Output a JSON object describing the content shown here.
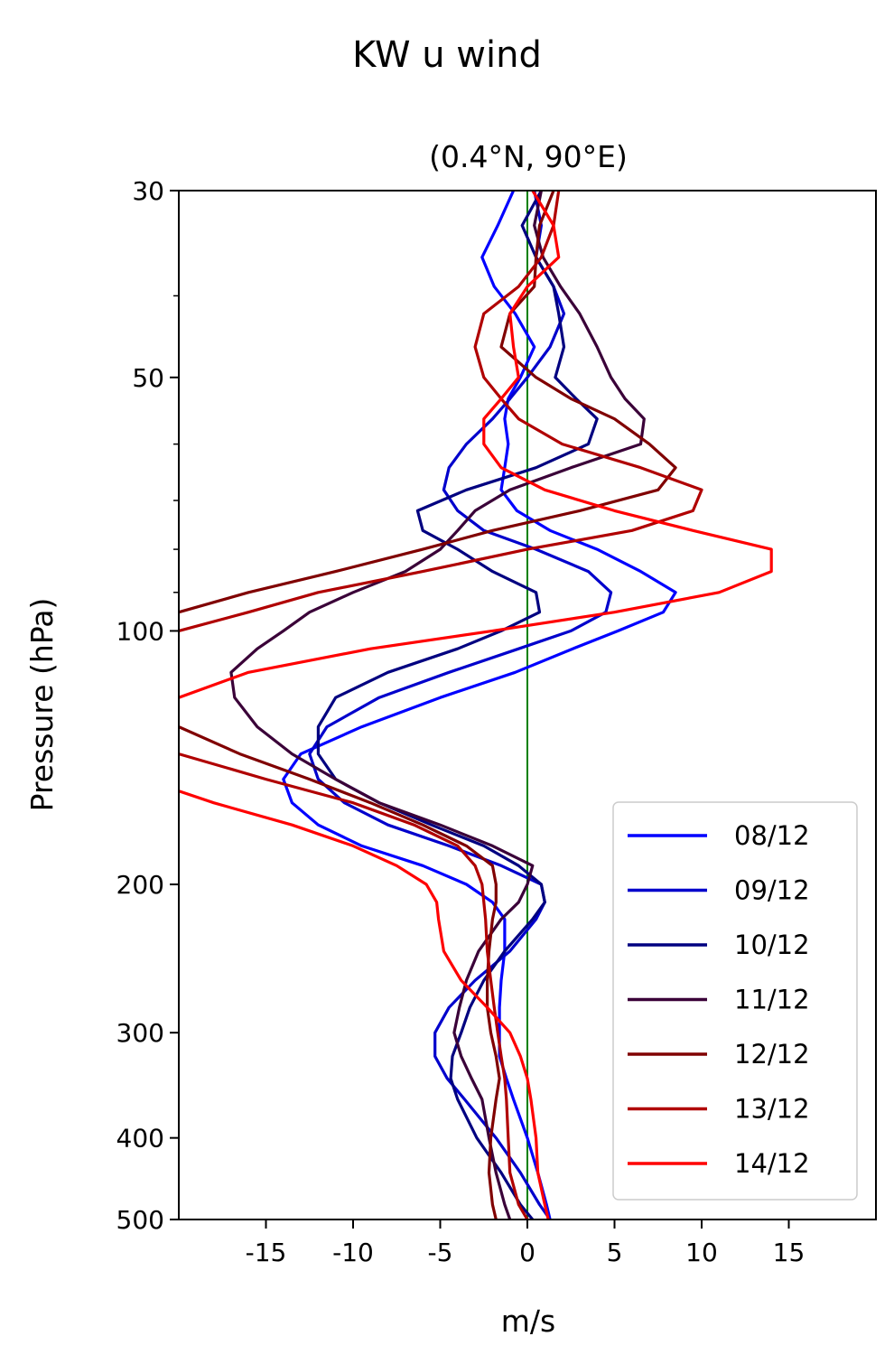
{
  "chart_data": {
    "type": "line",
    "suptitle": "KW u wind",
    "title": "(0.4°N, 90°E)",
    "xlabel": "m/s",
    "ylabel": "Pressure (hPa)",
    "xlim": [
      -20,
      20
    ],
    "ylim": [
      500,
      30
    ],
    "yscale": "log",
    "xticks": [
      -15,
      -10,
      -5,
      0,
      5,
      10,
      15
    ],
    "xtick_labels": [
      "-15",
      "-10",
      "-5",
      "0",
      "5",
      "10",
      "15"
    ],
    "yticks": [
      30,
      50,
      100,
      200,
      300,
      400,
      500
    ],
    "ytick_labels": [
      "30",
      "50",
      "100",
      "200",
      "300",
      "400",
      "500"
    ],
    "y_minor_ticks": [
      40,
      60,
      70,
      80,
      90
    ],
    "grid": false,
    "legend_position": "lower-right",
    "reference_line": {
      "x": 0,
      "color": "#008000"
    },
    "series": [
      {
        "name": "08/12",
        "color": "#0000ff",
        "p": [
          30,
          33,
          36,
          39,
          42,
          46,
          50,
          53,
          56,
          60,
          64,
          68,
          72,
          76,
          80,
          85,
          90,
          95,
          100,
          105,
          112,
          120,
          130,
          140,
          150,
          160,
          170,
          180,
          190,
          200,
          210,
          220,
          240,
          260,
          280,
          300,
          320,
          340,
          360,
          400,
          440,
          480,
          500
        ],
        "u": [
          -0.8,
          -1.7,
          -2.6,
          -1.9,
          -0.7,
          0.4,
          -0.4,
          -1.1,
          -1.3,
          -1.1,
          -1.3,
          -1.5,
          -0.6,
          1.3,
          4.0,
          6.5,
          8.5,
          7.8,
          5.2,
          2.6,
          -0.7,
          -5.0,
          -9.5,
          -13.0,
          -14.0,
          -13.5,
          -12.0,
          -9.5,
          -6.0,
          -3.5,
          -2.0,
          -1.3,
          -1.3,
          -1.5,
          -1.6,
          -1.6,
          -1.6,
          -1.2,
          -0.8,
          0.0,
          0.6,
          1.1,
          1.3
        ]
      },
      {
        "name": "09/12",
        "color": "#0000cc",
        "p": [
          30,
          33,
          36,
          39,
          42,
          46,
          50,
          53,
          56,
          60,
          64,
          68,
          72,
          76,
          80,
          85,
          90,
          95,
          100,
          105,
          112,
          120,
          130,
          140,
          150,
          160,
          170,
          180,
          190,
          200,
          210,
          220,
          240,
          260,
          280,
          300,
          320,
          340,
          360,
          400,
          440,
          480,
          500
        ],
        "u": [
          0.4,
          0.8,
          0.5,
          1.5,
          2.1,
          1.3,
          0.0,
          -1.0,
          -2.0,
          -3.5,
          -4.5,
          -4.8,
          -4.0,
          -2.5,
          0.5,
          3.5,
          4.8,
          4.5,
          2.5,
          -0.5,
          -4.5,
          -8.5,
          -11.5,
          -12.5,
          -12.0,
          -10.5,
          -8.0,
          -4.5,
          -1.5,
          0.8,
          1.0,
          0.5,
          -1.0,
          -3.0,
          -4.5,
          -5.3,
          -5.3,
          -4.6,
          -3.6,
          -1.8,
          -0.4,
          0.7,
          1.3
        ]
      },
      {
        "name": "10/12",
        "color": "#000080",
        "p": [
          30,
          33,
          36,
          39,
          42,
          46,
          50,
          53,
          56,
          60,
          64,
          68,
          72,
          76,
          80,
          85,
          90,
          95,
          100,
          105,
          112,
          120,
          130,
          140,
          150,
          160,
          170,
          180,
          190,
          200,
          210,
          220,
          240,
          260,
          280,
          300,
          320,
          340,
          360,
          400,
          440,
          480,
          500
        ],
        "u": [
          0.8,
          -0.3,
          0.5,
          1.5,
          1.8,
          2.1,
          1.6,
          2.8,
          4.0,
          3.5,
          0.5,
          -3.5,
          -6.3,
          -6.0,
          -4.0,
          -2.0,
          0.5,
          0.7,
          -1.5,
          -4.0,
          -8.0,
          -11.0,
          -12.0,
          -12.0,
          -11.0,
          -8.5,
          -5.5,
          -2.5,
          -0.5,
          0.8,
          1.0,
          0.3,
          -1.3,
          -2.5,
          -3.3,
          -3.8,
          -4.3,
          -4.4,
          -4.0,
          -2.9,
          -1.5,
          -0.4,
          0.3
        ]
      },
      {
        "name": "11/12",
        "color": "#3a0038",
        "p": [
          30,
          33,
          36,
          39,
          42,
          46,
          50,
          53,
          56,
          60,
          64,
          68,
          72,
          76,
          80,
          85,
          90,
          95,
          100,
          105,
          112,
          120,
          130,
          140,
          150,
          160,
          170,
          180,
          190,
          200,
          210,
          220,
          240,
          260,
          280,
          300,
          320,
          340,
          360,
          400,
          440,
          480,
          500
        ],
        "u": [
          0.8,
          0.4,
          0.9,
          1.9,
          3.0,
          4.0,
          4.8,
          5.6,
          6.7,
          6.5,
          2.5,
          -1.0,
          -3.0,
          -4.0,
          -5.0,
          -7.0,
          -10.0,
          -12.5,
          -14.0,
          -15.5,
          -17.0,
          -16.8,
          -15.5,
          -13.5,
          -11.0,
          -8.5,
          -5.0,
          -2.0,
          0.3,
          0.0,
          -0.5,
          -1.5,
          -2.8,
          -3.5,
          -3.9,
          -4.2,
          -3.8,
          -3.2,
          -2.6,
          -2.2,
          -1.8,
          -1.3,
          -1.0
        ]
      },
      {
        "name": "12/12",
        "color": "#800000",
        "p": [
          30,
          33,
          36,
          39,
          42,
          46,
          50,
          53,
          56,
          60,
          64,
          68,
          72,
          76,
          80,
          85,
          90,
          95,
          100,
          105,
          112,
          120,
          130,
          140,
          150,
          160,
          170,
          180,
          190,
          200,
          210,
          220,
          240,
          260,
          280,
          300,
          320,
          340,
          360,
          400,
          440,
          480,
          500
        ],
        "u": [
          1.5,
          0.7,
          0.5,
          0.4,
          -1.0,
          -1.5,
          0.5,
          2.5,
          5.0,
          7.0,
          8.5,
          7.5,
          3.0,
          -2.0,
          -6.0,
          -11.0,
          -16.0,
          -20.0,
          -22.0,
          -23.0,
          -23.5,
          -22.5,
          -20.0,
          -16.5,
          -12.5,
          -9.0,
          -6.0,
          -3.5,
          -2.0,
          -1.8,
          -1.8,
          -2.0,
          -2.2,
          -2.3,
          -2.3,
          -2.1,
          -1.8,
          -1.6,
          -1.8,
          -2.1,
          -2.2,
          -2.0,
          -1.8
        ]
      },
      {
        "name": "13/12",
        "color": "#b00000",
        "p": [
          30,
          33,
          36,
          39,
          42,
          46,
          50,
          53,
          56,
          60,
          64,
          68,
          72,
          76,
          80,
          85,
          90,
          95,
          100,
          105,
          112,
          120,
          130,
          140,
          150,
          160,
          170,
          180,
          190,
          200,
          210,
          220,
          240,
          260,
          280,
          300,
          320,
          340,
          360,
          400,
          440,
          480,
          500
        ],
        "u": [
          1.8,
          1.5,
          0.8,
          -0.5,
          -2.5,
          -3.0,
          -2.5,
          -1.5,
          -0.5,
          2.0,
          6.5,
          10.0,
          9.5,
          6.0,
          0.0,
          -6.0,
          -12.0,
          -16.0,
          -20.0,
          -22.5,
          -24.5,
          -25.0,
          -23.5,
          -20.0,
          -15.0,
          -10.0,
          -6.5,
          -4.0,
          -3.0,
          -2.6,
          -2.5,
          -2.4,
          -2.3,
          -2.1,
          -1.9,
          -1.7,
          -1.5,
          -1.3,
          -1.2,
          -1.1,
          -1.0,
          -0.5,
          0.0
        ]
      },
      {
        "name": "14/12",
        "color": "#ff0000",
        "p": [
          30,
          33,
          36,
          39,
          42,
          46,
          50,
          53,
          56,
          60,
          64,
          68,
          72,
          76,
          80,
          85,
          90,
          95,
          100,
          105,
          112,
          120,
          130,
          140,
          150,
          160,
          170,
          180,
          190,
          200,
          210,
          220,
          240,
          260,
          280,
          300,
          320,
          340,
          360,
          400,
          440,
          480,
          500
        ],
        "u": [
          0.3,
          1.5,
          1.8,
          0.0,
          -1.0,
          -0.8,
          -0.5,
          -1.5,
          -2.5,
          -2.5,
          -1.5,
          1.0,
          5.0,
          9.5,
          14.0,
          14.0,
          11.0,
          5.0,
          -2.0,
          -9.0,
          -16.0,
          -20.0,
          -22.0,
          -23.5,
          -22.0,
          -18.0,
          -13.5,
          -10.0,
          -7.5,
          -5.8,
          -5.2,
          -5.1,
          -4.8,
          -3.8,
          -2.3,
          -1.0,
          -0.4,
          0.0,
          0.2,
          0.5,
          0.6,
          1.0,
          1.2
        ]
      }
    ]
  }
}
